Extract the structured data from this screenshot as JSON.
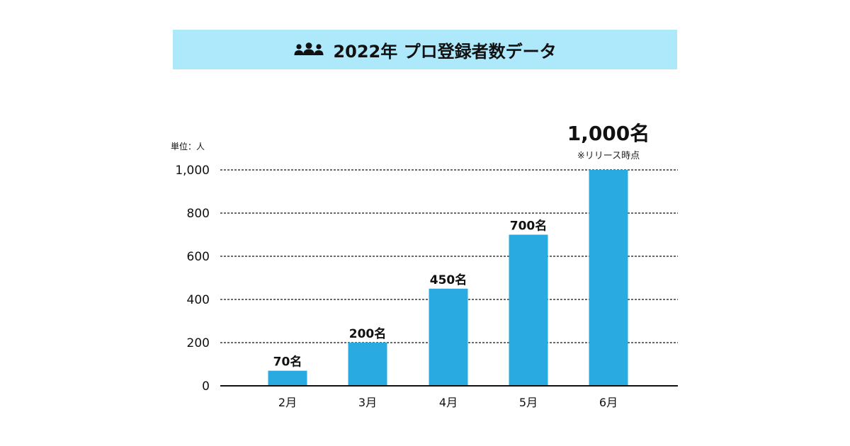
{
  "title": {
    "text": "2022年 プロ登録者数データ",
    "icon": "people-group-icon"
  },
  "colors": {
    "banner_bg": "#ade8fb",
    "bar": "#29abe2",
    "highlight_text": "#0a73b8",
    "gridline": "#111111"
  },
  "chart_data": {
    "type": "bar",
    "title": "2022年 プロ登録者数データ",
    "unit_label": "単位：人",
    "categories": [
      "2月",
      "3月",
      "4月",
      "5月",
      "6月"
    ],
    "values": [
      70,
      200,
      450,
      700,
      1000
    ],
    "data_labels": [
      "70名",
      "200名",
      "450名",
      "700名",
      "1,000名"
    ],
    "highlight_index": 4,
    "highlight_note": "※リリース時点",
    "ylim": [
      0,
      1000
    ],
    "y_ticks": [
      0,
      200,
      400,
      600,
      800,
      1000
    ],
    "y_tick_labels": [
      "0",
      "200",
      "400",
      "600",
      "800",
      "1,000"
    ],
    "grid": "dashed horizontal",
    "xlabel": "",
    "ylabel": ""
  }
}
